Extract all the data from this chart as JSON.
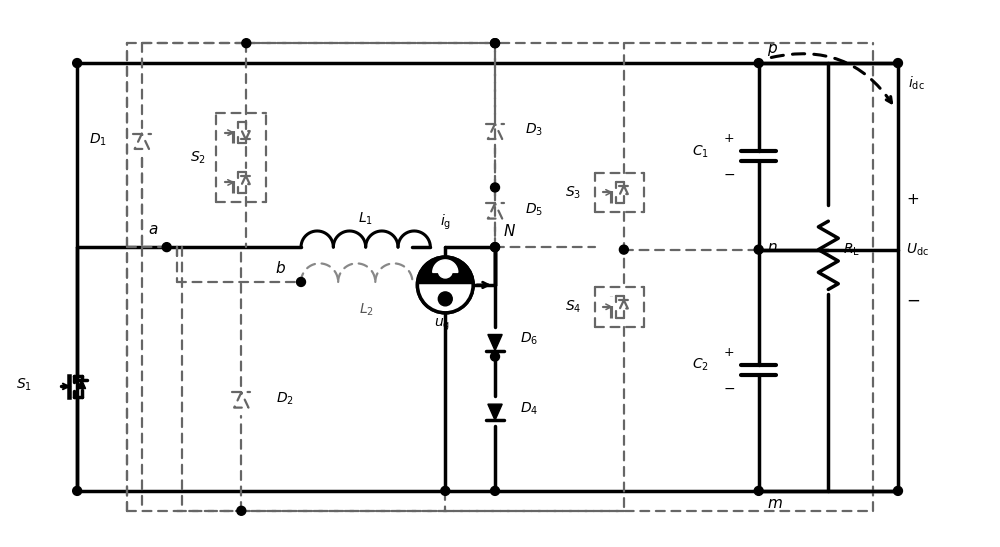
{
  "bg_color": "#ffffff",
  "line_color": "#000000",
  "dashed_color": "#666666",
  "solid_lw": 2.5,
  "dashed_lw": 1.6
}
